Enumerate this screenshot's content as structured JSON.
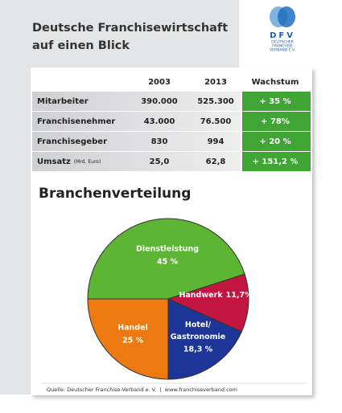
{
  "header": {
    "title_lines": [
      "Deutsche Franchisewirtschaft",
      "auf einen Blick"
    ],
    "logo": {
      "abbr": "DFV",
      "lines": [
        "DEUTSCHER",
        "FRANCHISE",
        "VERBAND E.V."
      ]
    }
  },
  "table": {
    "columns": [
      "2003",
      "2013",
      "Wachstum"
    ],
    "rows": [
      {
        "label": "Mitarbeiter",
        "cells": [
          "390.000",
          "525.300",
          "+ 35 %"
        ]
      },
      {
        "label": "Franchisenehmer",
        "cells": [
          "43.000",
          "76.500",
          "+ 78%"
        ]
      },
      {
        "label": "Franchisegeber",
        "cells": [
          "830",
          "994",
          "+ 20 %"
        ]
      },
      {
        "label": "Umsatz",
        "note": "(Mrd. Euro)",
        "cells": [
          "25,0",
          "62,8",
          "+ 151,2 %"
        ]
      }
    ]
  },
  "chart_data": {
    "type": "pie",
    "title": "Branchenverteilung",
    "categories": [
      "Dienstleistung",
      "Handwerk",
      "Hotel/ Gastronomie",
      "Handel"
    ],
    "values": [
      45,
      11.7,
      18.3,
      25
    ],
    "value_labels": [
      "45 %",
      "11,7%",
      "18,3 %",
      "25 %"
    ],
    "colors": [
      "#5db534",
      "#c2153f",
      "#1c3596",
      "#ec7a10"
    ]
  },
  "footer": "Quelle: Deutscher Franchise-Verband e. V.  |  www.franchiseverband.com"
}
